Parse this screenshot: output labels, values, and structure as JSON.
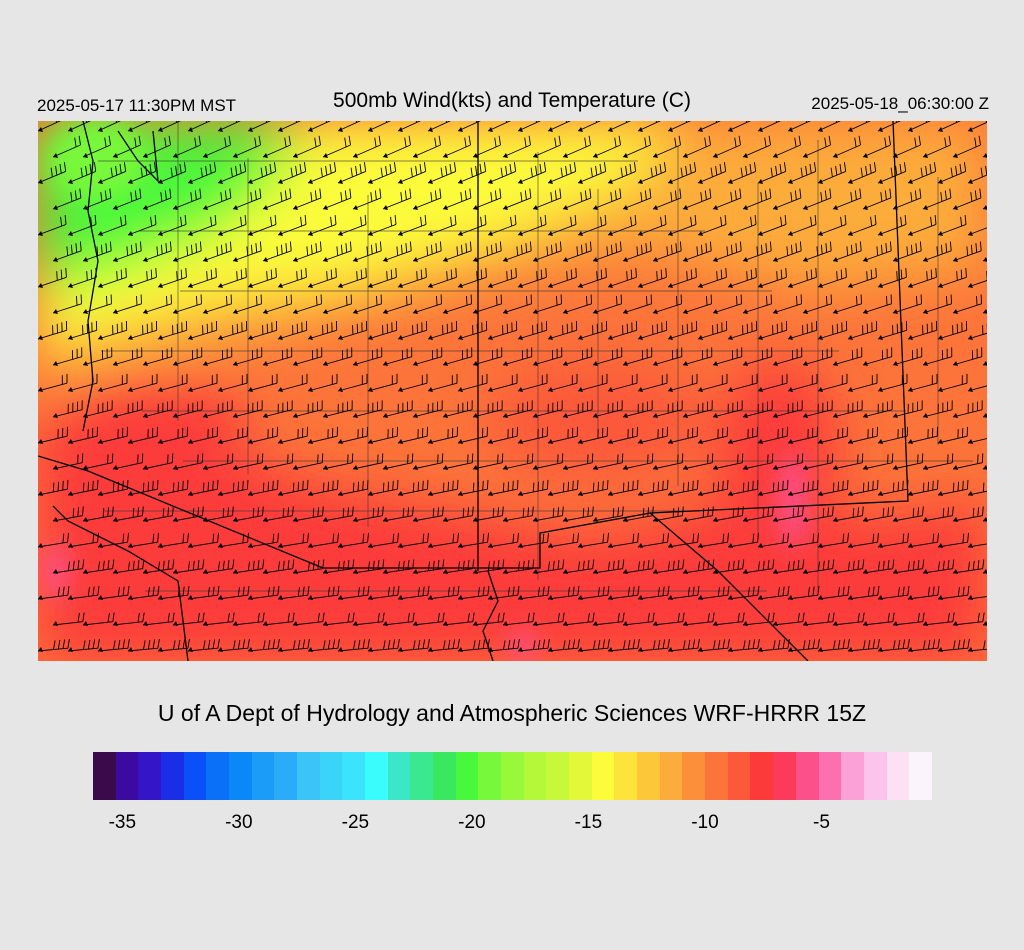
{
  "header": {
    "valid_local": "2025-05-17 11:30PM MST",
    "title": "500mb Wind(kts) and Temperature (C)",
    "valid_utc": "2025-05-18_06:30:00 Z"
  },
  "footer": {
    "credit": "U of A Dept of Hydrology and Atmospheric Sciences WRF-HRRR 15Z"
  },
  "colorbar": {
    "colors": [
      "#3a0a4a",
      "#3c0aa0",
      "#3416c8",
      "#1a2ee8",
      "#0a50f8",
      "#0a70f8",
      "#0a88f8",
      "#1a9cf8",
      "#2aacf8",
      "#3ac4f8",
      "#3ad4f8",
      "#3ae4fc",
      "#3afcfc",
      "#3ae8c8",
      "#3ae890",
      "#3ae860",
      "#48f83a",
      "#78f83a",
      "#98f83a",
      "#b4f83a",
      "#c8f83a",
      "#e4f83a",
      "#fcfc3a",
      "#fce43a",
      "#fcc83a",
      "#fcac3a",
      "#fc903a",
      "#fc743a",
      "#fc583a",
      "#fc3a3a",
      "#fc3a5a",
      "#fc508a",
      "#fc70b0",
      "#fca0d8",
      "#fcc4ec",
      "#fce0f4",
      "#fcf4fc"
    ],
    "tick_labels": [
      "-35",
      "-30",
      "-25",
      "-20",
      "-15",
      "-10",
      "-5"
    ],
    "tick_values": [
      -35,
      -30,
      -25,
      -20,
      -15,
      -10,
      -5
    ],
    "range": [
      -36,
      0
    ]
  },
  "map": {
    "field": "500mb temperature (C) with wind barbs (kts)",
    "colors": {
      "cold": "#48f83a",
      "cool": "#fcfc3a",
      "mild": "#fcac3a",
      "warm": "#fc743a",
      "warmer": "#fc3a3a",
      "warmest": "#fc508a",
      "borders": "#000000",
      "counties": "#333333"
    }
  }
}
